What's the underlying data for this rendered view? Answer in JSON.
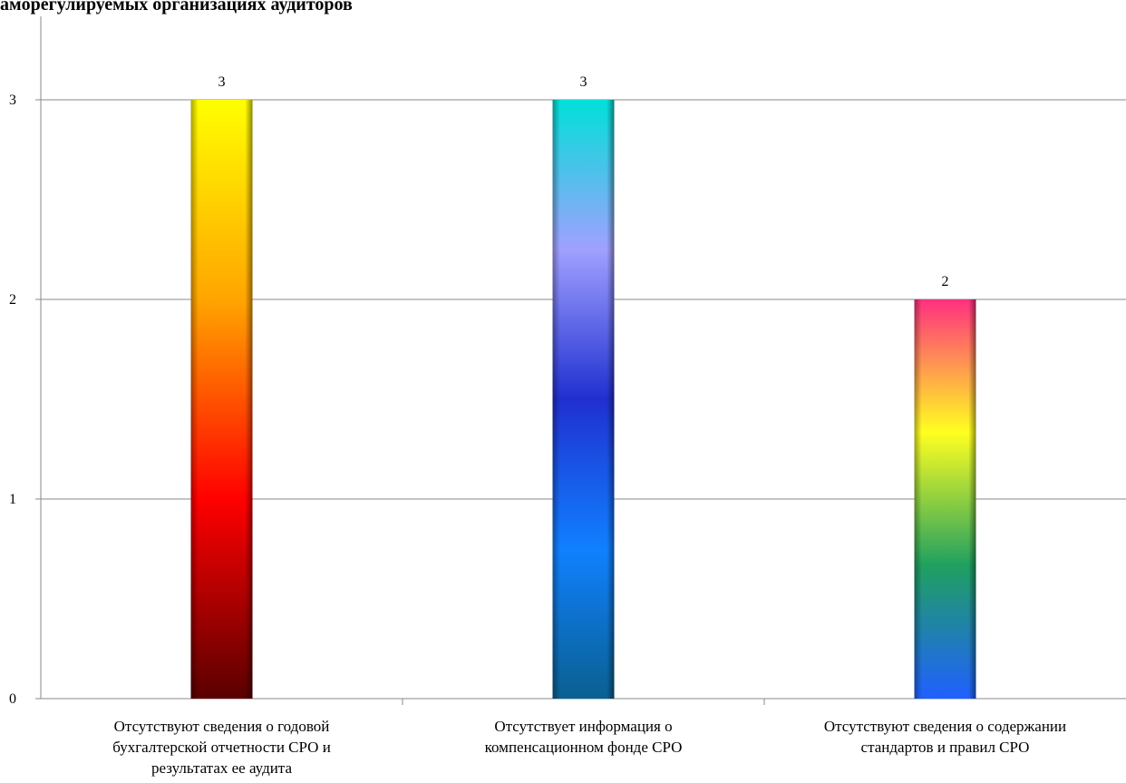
{
  "chart_data": {
    "type": "bar",
    "title": "амoрегулируемых организациях аудиторов",
    "categories": [
      [
        "Отсутствуют сведения о годовой",
        "бухгалтерской отчетности СРО и",
        "результатах ее аудита"
      ],
      [
        "Отсутствует информация  о",
        "компенсационном  фонде СРО"
      ],
      [
        "Отсутствуют сведения о содержании",
        "стандартов и правил СРО"
      ]
    ],
    "values": [
      3,
      3,
      2
    ],
    "data_labels": [
      "3",
      "3",
      "2"
    ],
    "yticks": [
      "0",
      "1",
      "2",
      "3"
    ],
    "ylim": [
      0,
      3
    ],
    "grid": true,
    "legend": "none",
    "bar_gradients": [
      [
        "#ffff00",
        "#ffa500",
        "#ff0000",
        "#5a0000"
      ],
      [
        "#00e0d8",
        "#a0a0ff",
        "#2030d0",
        "#1080ff",
        "#0a6090"
      ],
      [
        "#ff3080",
        "#ffff20",
        "#20a060",
        "#2060ff"
      ]
    ]
  }
}
